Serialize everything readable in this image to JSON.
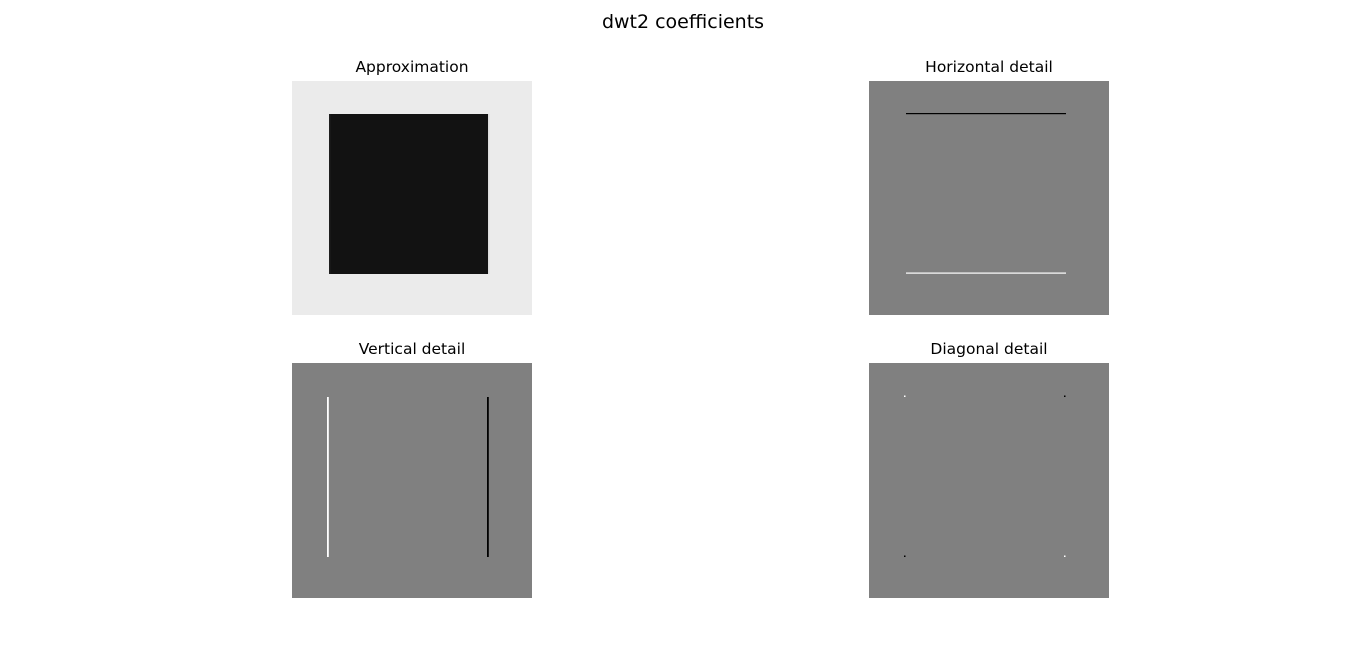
{
  "figure": {
    "title": "dwt2 coefficients"
  },
  "panels": {
    "approximation": {
      "title": "Approximation"
    },
    "horizontal": {
      "title": "Horizontal detail"
    },
    "vertical": {
      "title": "Vertical detail"
    },
    "diagonal": {
      "title": "Diagonal detail"
    }
  },
  "colors": {
    "approximation_background": "#ebebeb",
    "approximation_square": "#121212",
    "detail_background": "#808080",
    "positive_edge": "#ffffff",
    "negative_edge": "#000000"
  }
}
